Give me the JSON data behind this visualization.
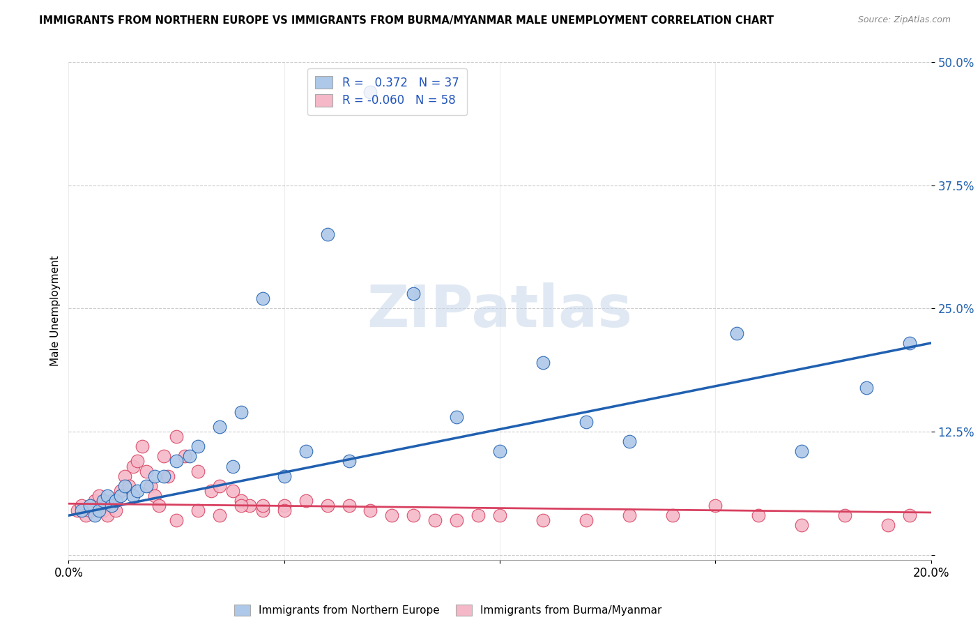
{
  "title": "IMMIGRANTS FROM NORTHERN EUROPE VS IMMIGRANTS FROM BURMA/MYANMAR MALE UNEMPLOYMENT CORRELATION CHART",
  "source": "Source: ZipAtlas.com",
  "ylabel": "Male Unemployment",
  "xlim": [
    0.0,
    0.2
  ],
  "ylim": [
    -0.005,
    0.5
  ],
  "yticks": [
    0.0,
    0.125,
    0.25,
    0.375,
    0.5
  ],
  "ytick_labels": [
    "",
    "12.5%",
    "25.0%",
    "37.5%",
    "50.0%"
  ],
  "xticks": [
    0.0,
    0.05,
    0.1,
    0.15,
    0.2
  ],
  "xtick_labels": [
    "0.0%",
    "",
    "",
    "",
    "20.0%"
  ],
  "blue_R": 0.372,
  "blue_N": 37,
  "pink_R": -0.06,
  "pink_N": 58,
  "blue_color": "#adc8e8",
  "pink_color": "#f5b8c8",
  "blue_line_color": "#2060b0",
  "pink_line_color": "#d84060",
  "watermark": "ZIPatlas",
  "blue_scatter_x": [
    0.003,
    0.005,
    0.006,
    0.007,
    0.008,
    0.009,
    0.01,
    0.011,
    0.012,
    0.013,
    0.015,
    0.016,
    0.018,
    0.02,
    0.022,
    0.025,
    0.028,
    0.03,
    0.035,
    0.038,
    0.04,
    0.045,
    0.05,
    0.055,
    0.065,
    0.07,
    0.08,
    0.09,
    0.1,
    0.11,
    0.13,
    0.155,
    0.17,
    0.185,
    0.195,
    0.06,
    0.12
  ],
  "blue_scatter_y": [
    0.045,
    0.05,
    0.04,
    0.045,
    0.055,
    0.06,
    0.05,
    0.055,
    0.06,
    0.07,
    0.06,
    0.065,
    0.07,
    0.08,
    0.08,
    0.095,
    0.1,
    0.11,
    0.13,
    0.09,
    0.145,
    0.26,
    0.08,
    0.105,
    0.095,
    0.47,
    0.265,
    0.14,
    0.105,
    0.195,
    0.115,
    0.225,
    0.105,
    0.17,
    0.215,
    0.325,
    0.135
  ],
  "pink_scatter_x": [
    0.002,
    0.003,
    0.004,
    0.005,
    0.006,
    0.007,
    0.008,
    0.009,
    0.01,
    0.011,
    0.012,
    0.013,
    0.014,
    0.015,
    0.016,
    0.017,
    0.018,
    0.019,
    0.02,
    0.021,
    0.022,
    0.023,
    0.025,
    0.027,
    0.03,
    0.033,
    0.035,
    0.038,
    0.04,
    0.042,
    0.045,
    0.05,
    0.055,
    0.06,
    0.065,
    0.07,
    0.075,
    0.08,
    0.085,
    0.09,
    0.095,
    0.1,
    0.11,
    0.12,
    0.13,
    0.14,
    0.15,
    0.16,
    0.17,
    0.18,
    0.19,
    0.195,
    0.025,
    0.03,
    0.035,
    0.04,
    0.045,
    0.05
  ],
  "pink_scatter_y": [
    0.045,
    0.05,
    0.04,
    0.045,
    0.055,
    0.06,
    0.045,
    0.04,
    0.055,
    0.045,
    0.065,
    0.08,
    0.07,
    0.09,
    0.095,
    0.11,
    0.085,
    0.07,
    0.06,
    0.05,
    0.1,
    0.08,
    0.12,
    0.1,
    0.085,
    0.065,
    0.07,
    0.065,
    0.055,
    0.05,
    0.045,
    0.05,
    0.055,
    0.05,
    0.05,
    0.045,
    0.04,
    0.04,
    0.035,
    0.035,
    0.04,
    0.04,
    0.035,
    0.035,
    0.04,
    0.04,
    0.05,
    0.04,
    0.03,
    0.04,
    0.03,
    0.04,
    0.035,
    0.045,
    0.04,
    0.05,
    0.05,
    0.045
  ],
  "blue_line_x": [
    0.0,
    0.2
  ],
  "blue_line_y": [
    0.04,
    0.215
  ],
  "pink_line_x": [
    0.0,
    0.2
  ],
  "pink_line_y": [
    0.052,
    0.043
  ]
}
